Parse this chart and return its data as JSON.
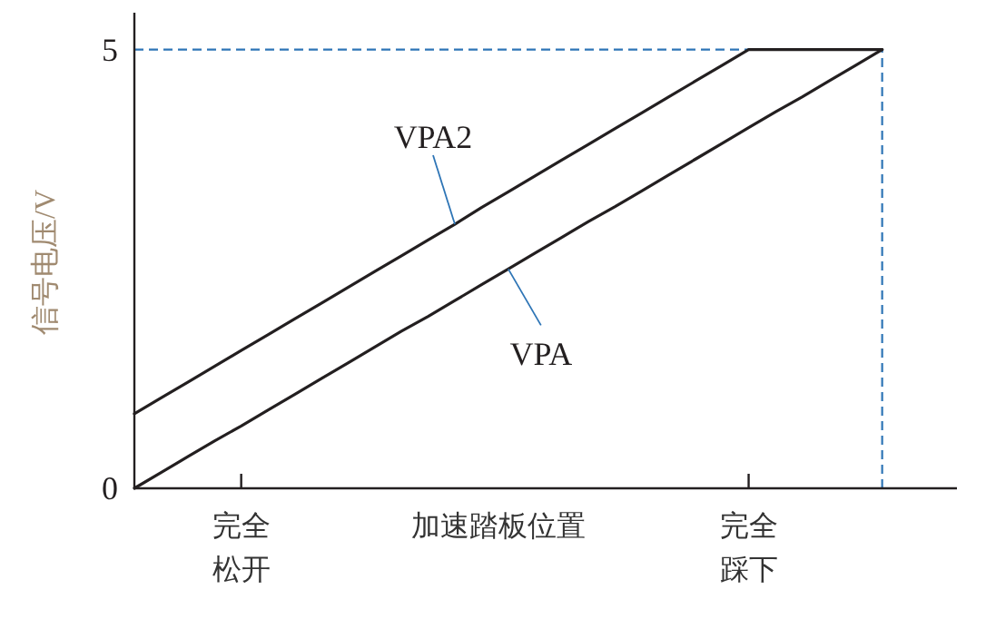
{
  "chart_data": {
    "type": "line",
    "xlabel": "加速踏板位置",
    "ylabel": "信号电压/V",
    "categories": [
      null,
      null,
      null,
      null,
      "完全松开",
      null,
      null,
      null,
      null,
      null,
      null,
      null,
      null,
      null,
      null,
      null,
      null,
      null,
      null,
      null,
      null,
      null,
      null,
      "完全踩下",
      null,
      null,
      null,
      null,
      null
    ],
    "ylim": [
      0,
      5.4
    ],
    "yticks": [
      0,
      5
    ],
    "marker": "none",
    "line_style": "solid",
    "series": [
      {
        "name": "VPA2",
        "color": "#231f20",
        "values": [
          0.85,
          1.03,
          1.21,
          1.39,
          1.57,
          1.75,
          1.93,
          2.11,
          2.29,
          2.47,
          2.65,
          2.83,
          3.01,
          3.2,
          3.38,
          3.56,
          3.74,
          3.92,
          4.1,
          4.28,
          4.46,
          4.64,
          4.82,
          5,
          5,
          5,
          5,
          5,
          5
        ]
      },
      {
        "name": "VPA",
        "color": "#231f20",
        "values": [
          0,
          0.18,
          0.36,
          0.54,
          0.71,
          0.89,
          1.07,
          1.25,
          1.43,
          1.61,
          1.79,
          1.96,
          2.14,
          2.32,
          2.5,
          2.68,
          2.86,
          3.04,
          3.21,
          3.39,
          3.57,
          3.75,
          3.93,
          4.11,
          4.29,
          4.46,
          4.64,
          4.82,
          5
        ]
      }
    ],
    "ref_lines": [
      {
        "axis": "y",
        "value": 5,
        "color": "#2e75b6",
        "line_style": "dashed"
      }
    ]
  }
}
